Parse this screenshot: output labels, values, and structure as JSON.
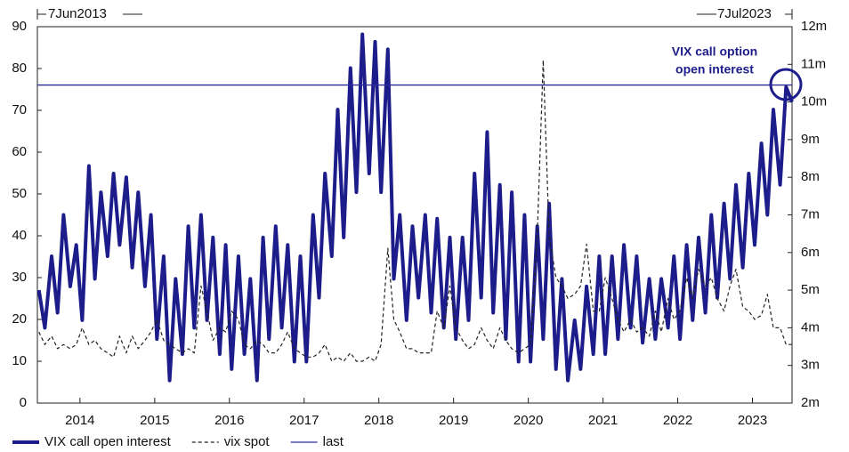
{
  "chart_data": {
    "type": "line",
    "date_start": "7Jun2013",
    "date_end": "7Jul2023",
    "annotation": [
      "VIX call option",
      "open interest"
    ],
    "annotation_color": "#1c1c8a",
    "x": [
      2013.45,
      2013.53,
      2013.62,
      2013.7,
      2013.78,
      2013.87,
      2013.95,
      2014.03,
      2014.12,
      2014.2,
      2014.28,
      2014.37,
      2014.45,
      2014.53,
      2014.62,
      2014.7,
      2014.78,
      2014.87,
      2014.95,
      2015.03,
      2015.12,
      2015.2,
      2015.28,
      2015.37,
      2015.45,
      2015.53,
      2015.62,
      2015.7,
      2015.78,
      2015.87,
      2015.95,
      2016.03,
      2016.12,
      2016.2,
      2016.28,
      2016.37,
      2016.45,
      2016.53,
      2016.62,
      2016.7,
      2016.78,
      2016.87,
      2016.95,
      2017.03,
      2017.12,
      2017.2,
      2017.28,
      2017.37,
      2017.45,
      2017.53,
      2017.62,
      2017.7,
      2017.78,
      2017.87,
      2017.95,
      2018.03,
      2018.12,
      2018.2,
      2018.28,
      2018.37,
      2018.45,
      2018.53,
      2018.62,
      2018.7,
      2018.78,
      2018.87,
      2018.95,
      2019.03,
      2019.12,
      2019.2,
      2019.28,
      2019.37,
      2019.45,
      2019.53,
      2019.62,
      2019.7,
      2019.78,
      2019.87,
      2019.95,
      2020.03,
      2020.12,
      2020.2,
      2020.28,
      2020.37,
      2020.45,
      2020.53,
      2020.62,
      2020.7,
      2020.78,
      2020.87,
      2020.95,
      2021.03,
      2021.12,
      2021.2,
      2021.28,
      2021.37,
      2021.45,
      2021.53,
      2021.62,
      2021.7,
      2021.78,
      2021.87,
      2021.95,
      2022.03,
      2022.12,
      2022.2,
      2022.28,
      2022.37,
      2022.45,
      2022.53,
      2022.62,
      2022.7,
      2022.78,
      2022.87,
      2022.95,
      2023.03,
      2023.12,
      2023.2,
      2023.28,
      2023.37,
      2023.45,
      2023.53
    ],
    "xlim": [
      2013.43,
      2023.53
    ],
    "xticks": [
      2014,
      2015,
      2016,
      2017,
      2018,
      2019,
      2020,
      2021,
      2022,
      2023
    ],
    "ylim": [
      0,
      90
    ],
    "yticks": [
      0,
      10,
      20,
      30,
      40,
      50,
      60,
      70,
      80,
      90
    ],
    "y2lim": [
      2000000,
      12000000
    ],
    "y2ticks": [
      {
        "value": 2000000,
        "label": "2m"
      },
      {
        "value": 3000000,
        "label": "3m"
      },
      {
        "value": 4000000,
        "label": "4m"
      },
      {
        "value": 5000000,
        "label": "5m"
      },
      {
        "value": 6000000,
        "label": "6m"
      },
      {
        "value": 7000000,
        "label": "7m"
      },
      {
        "value": 8000000,
        "label": "8m"
      },
      {
        "value": 9000000,
        "label": "9m"
      },
      {
        "value": 10000000,
        "label": "10m"
      },
      {
        "value": 11000000,
        "label": "11m"
      },
      {
        "value": 12000000,
        "label": "12m"
      }
    ],
    "series": [
      {
        "name": "VIX call open interest",
        "color": "#1c1c8a",
        "axis": "y2",
        "width": 4,
        "dashed": false,
        "values": [
          5000000,
          4000000,
          5900000,
          4400000,
          7000000,
          5100000,
          6200000,
          4200000,
          8300000,
          5300000,
          7600000,
          5900000,
          8100000,
          6200000,
          8000000,
          5600000,
          7600000,
          5100000,
          7000000,
          3700000,
          5900000,
          2600000,
          5300000,
          3300000,
          6700000,
          4000000,
          7000000,
          4200000,
          6400000,
          3300000,
          6200000,
          2900000,
          5900000,
          3300000,
          5300000,
          2600000,
          6400000,
          3700000,
          6700000,
          4000000,
          6200000,
          3100000,
          5900000,
          3100000,
          7000000,
          4800000,
          8100000,
          5900000,
          9800000,
          6400000,
          10900000,
          7600000,
          11800000,
          8100000,
          11600000,
          7600000,
          11400000,
          5300000,
          7000000,
          4200000,
          6700000,
          4800000,
          7000000,
          4400000,
          6900000,
          4000000,
          6400000,
          3700000,
          6400000,
          4200000,
          8100000,
          4800000,
          9200000,
          4400000,
          7800000,
          3700000,
          7600000,
          3100000,
          7000000,
          3100000,
          6700000,
          3700000,
          7300000,
          2900000,
          5300000,
          2600000,
          4200000,
          2900000,
          5100000,
          3300000,
          5900000,
          3300000,
          5900000,
          3700000,
          6200000,
          4000000,
          5900000,
          3600000,
          5300000,
          3700000,
          5300000,
          4000000,
          5900000,
          3700000,
          6200000,
          4200000,
          6400000,
          4400000,
          7000000,
          4800000,
          7300000,
          5300000,
          7800000,
          5600000,
          8100000,
          6200000,
          8900000,
          7000000,
          9800000,
          7800000,
          10400000,
          10000000
        ]
      },
      {
        "name": "vix spot",
        "color": "#222222",
        "axis": "y",
        "width": 1.2,
        "dashed": true,
        "values": [
          17,
          14,
          16,
          13,
          14,
          13,
          14,
          18,
          14,
          15,
          13,
          12,
          11,
          16,
          12,
          16,
          13,
          15,
          17,
          20,
          15,
          14,
          13,
          12,
          13,
          12,
          28,
          22,
          15,
          18,
          17,
          22,
          20,
          14,
          13,
          15,
          14,
          12,
          12,
          14,
          17,
          13,
          12,
          11,
          11,
          12,
          14,
          10,
          11,
          10,
          12,
          10,
          10,
          11,
          10,
          14,
          37,
          20,
          17,
          13,
          13,
          12,
          12,
          12,
          22,
          18,
          28,
          18,
          15,
          13,
          14,
          18,
          15,
          13,
          18,
          15,
          13,
          12,
          13,
          14,
          40,
          82,
          40,
          30,
          28,
          25,
          26,
          28,
          38,
          22,
          22,
          30,
          25,
          20,
          17,
          20,
          17,
          18,
          16,
          22,
          17,
          25,
          20,
          22,
          30,
          25,
          32,
          28,
          30,
          25,
          22,
          28,
          32,
          23,
          22,
          20,
          21,
          26,
          18,
          18,
          14,
          14
        ]
      },
      {
        "name": "last",
        "color": "#2a2a9a",
        "axis": "y2",
        "width": 1.3,
        "dashed": false,
        "value": 10450000
      }
    ]
  }
}
